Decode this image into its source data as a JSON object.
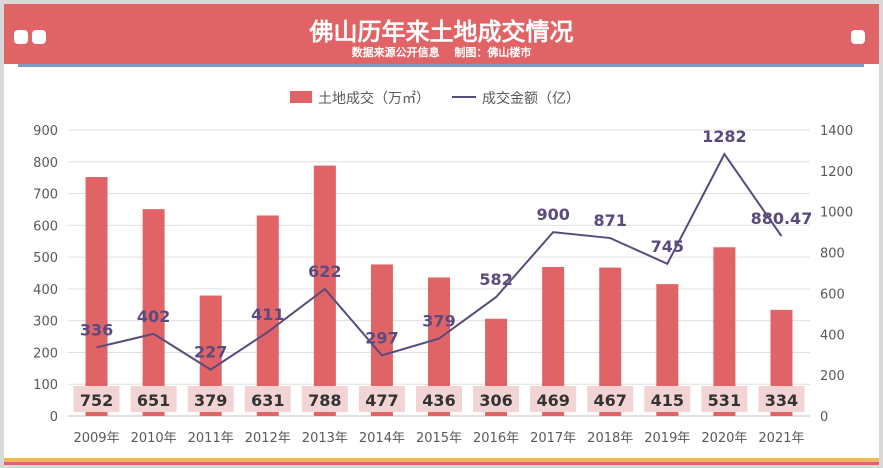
{
  "header": {
    "title": "佛山历年来土地成交情况",
    "subtitle": "数据来源公开信息　 制图：佛山楼市"
  },
  "colors": {
    "bar": "#e06466",
    "line": "#5b4a7e",
    "label_bg": "#f2d4d4",
    "header": "#e06466"
  },
  "chart_data": {
    "type": "bar+line",
    "categories": [
      "2009年",
      "2010年",
      "2011年",
      "2012年",
      "2013年",
      "2014年",
      "2015年",
      "2016年",
      "2017年",
      "2018年",
      "2019年",
      "2020年",
      "2021年"
    ],
    "series": [
      {
        "name": "土地成交（万㎡）",
        "type": "bar",
        "axis": "left",
        "values": [
          752,
          651,
          379,
          631,
          788,
          477,
          436,
          306,
          469,
          467,
          415,
          531,
          334
        ]
      },
      {
        "name": "成交金额（亿）",
        "type": "line",
        "axis": "right",
        "values": [
          336,
          402,
          227,
          411,
          622,
          297,
          379,
          582,
          900,
          871,
          745,
          1282,
          880.47
        ],
        "labels": [
          "336",
          "402",
          "227",
          "411",
          "622",
          "297",
          "379",
          "582",
          "900",
          "871",
          "745",
          "1282",
          "880.47"
        ]
      }
    ],
    "left_axis": {
      "ylim": [
        0,
        900
      ],
      "ticks": [
        "0",
        "100",
        "200",
        "300",
        "400",
        "500",
        "600",
        "700",
        "800",
        "900"
      ]
    },
    "right_axis": {
      "ylim": [
        0,
        1400
      ],
      "ticks": [
        "0",
        "200",
        "400",
        "600",
        "800",
        "1000",
        "1200",
        "1400"
      ]
    },
    "grid": true,
    "legend": "top"
  }
}
